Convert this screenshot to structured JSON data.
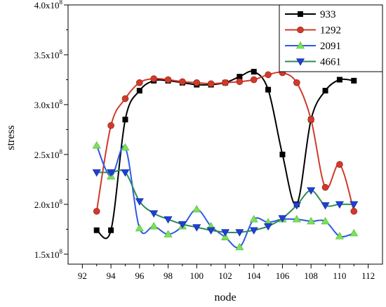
{
  "chart_data": {
    "type": "line",
    "xlabel": "node",
    "ylabel": "stress",
    "xlim": [
      91,
      113
    ],
    "ylim": [
      140000000,
      400000000
    ],
    "x_ticks": [
      "92",
      "94",
      "96",
      "98",
      "100",
      "102",
      "104",
      "106",
      "108",
      "110",
      "112"
    ],
    "y_ticks": [
      {
        "mantissa": "1.5x10",
        "exp": "8",
        "value": 150000000
      },
      {
        "mantissa": "2.0x10",
        "exp": "8",
        "value": 200000000
      },
      {
        "mantissa": "2.5x10",
        "exp": "8",
        "value": 250000000
      },
      {
        "mantissa": "3.0x10",
        "exp": "8",
        "value": 300000000
      },
      {
        "mantissa": "3.5x10",
        "exp": "8",
        "value": 350000000
      },
      {
        "mantissa": "4.0x10",
        "exp": "8",
        "value": 400000000
      }
    ],
    "grid": false,
    "legend_position": "top-right",
    "x": [
      93,
      94,
      95,
      96,
      97,
      98,
      99,
      100,
      101,
      102,
      103,
      104,
      105,
      106,
      107,
      108,
      109,
      110,
      111
    ],
    "series": [
      {
        "name": "933",
        "color": "#000000",
        "marker": "square",
        "values": [
          174000000,
          174000000,
          285000000,
          314000000,
          324000000,
          324000000,
          322000000,
          320000000,
          320000000,
          322000000,
          328000000,
          333000000,
          315000000,
          250000000,
          200000000,
          285000000,
          314000000,
          325000000,
          324000000
        ]
      },
      {
        "name": "1292",
        "color": "#d03a2a",
        "marker": "circle",
        "values": [
          193000000,
          279000000,
          306000000,
          322000000,
          326000000,
          325000000,
          323000000,
          322000000,
          321000000,
          322000000,
          323000000,
          325000000,
          330000000,
          332000000,
          322000000,
          285000000,
          217000000,
          240000000,
          193000000
        ]
      },
      {
        "name": "2091",
        "color": "#2e59e6",
        "marker": "triangle-up",
        "values": [
          259000000,
          228000000,
          257000000,
          176000000,
          178000000,
          170000000,
          178000000,
          195000000,
          178000000,
          167000000,
          157000000,
          185000000,
          182000000,
          185000000,
          185000000,
          183000000,
          183000000,
          168000000,
          171000000
        ]
      },
      {
        "name": "4661",
        "color": "#2e8b57",
        "marker": "triangle-down",
        "values": [
          232000000,
          232000000,
          232000000,
          203000000,
          191000000,
          185000000,
          180000000,
          177000000,
          174000000,
          172000000,
          172000000,
          174000000,
          178000000,
          186000000,
          199000000,
          214000000,
          199000000,
          200000000,
          200000000
        ]
      }
    ]
  }
}
